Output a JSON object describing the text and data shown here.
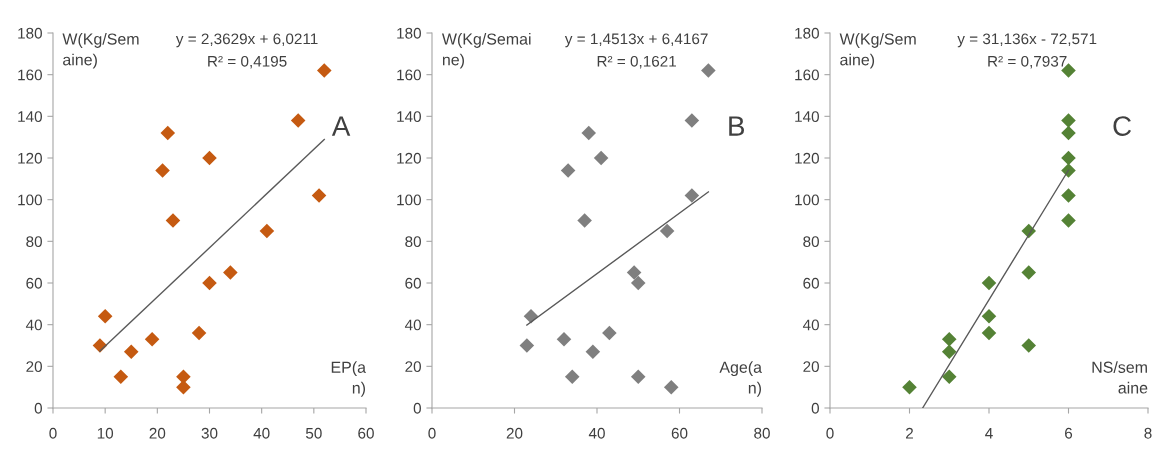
{
  "chart_data": [
    {
      "type": "scatter",
      "ylabel": "W(Kg/Sem\naine)",
      "xlabel": "EP(a\nn)",
      "annotations": [
        "y = 2,3629x + 6,0211",
        "R² = 0,4195",
        "A"
      ],
      "xlim": [
        0,
        60
      ],
      "xticks": [
        0,
        10,
        20,
        30,
        40,
        50,
        60
      ],
      "ylim": [
        0,
        180
      ],
      "yticks": [
        0,
        20,
        40,
        60,
        80,
        100,
        120,
        140,
        160,
        180
      ],
      "grid": false,
      "legend": false,
      "marker": "diamond",
      "series": [
        {
          "color": "#c55a11",
          "x": [
            9,
            10,
            13,
            15,
            19,
            21,
            22,
            23,
            25,
            25,
            28,
            30,
            30,
            34,
            41,
            47,
            51,
            52
          ],
          "values": [
            30,
            44,
            15,
            27,
            33,
            114,
            132,
            90,
            15,
            10,
            36,
            120,
            60,
            65,
            85,
            138,
            102,
            162
          ]
        },
        {
          "type": "line",
          "color": "#595959",
          "marker": "none",
          "line_style": "solid",
          "x": [
            9,
            52
          ],
          "values": [
            27.3,
            128.9
          ]
        }
      ]
    },
    {
      "type": "scatter",
      "ylabel": "W(Kg/Semai\nne)",
      "xlabel": "Age(a\nn)",
      "annotations": [
        "y = 1,4513x + 6,4167",
        "R² = 0,1621",
        "B"
      ],
      "xlim": [
        0,
        80
      ],
      "xticks": [
        0,
        20,
        40,
        60,
        80
      ],
      "ylim": [
        0,
        180
      ],
      "yticks": [
        0,
        20,
        40,
        60,
        80,
        100,
        120,
        140,
        160,
        180
      ],
      "grid": false,
      "legend": false,
      "marker": "diamond",
      "series": [
        {
          "color": "#7f7f7f",
          "x": [
            23,
            24,
            32,
            33,
            34,
            37,
            38,
            39,
            41,
            43,
            49,
            50,
            50,
            57,
            58,
            63,
            63,
            67
          ],
          "values": [
            30,
            44,
            33,
            114,
            15,
            90,
            132,
            27,
            120,
            36,
            65,
            60,
            15,
            85,
            10,
            138,
            102,
            162
          ]
        },
        {
          "type": "line",
          "color": "#595959",
          "marker": "none",
          "line_style": "solid",
          "x": [
            23,
            67
          ],
          "values": [
            39.8,
            103.7
          ]
        }
      ]
    },
    {
      "type": "scatter",
      "ylabel": "W(Kg/Sem\naine)",
      "xlabel": "NS/sem\naine",
      "annotations": [
        "y = 31,136x - 72,571",
        "R² = 0,7937",
        "C"
      ],
      "xlim": [
        0,
        8
      ],
      "xticks": [
        0,
        2,
        4,
        6,
        8
      ],
      "ylim": [
        0,
        180
      ],
      "yticks": [
        0,
        20,
        40,
        60,
        80,
        100,
        120,
        140,
        160,
        180
      ],
      "grid": false,
      "legend": false,
      "marker": "diamond",
      "series": [
        {
          "color": "#548235",
          "x": [
            2,
            3,
            3,
            3,
            4,
            4,
            4,
            5,
            5,
            5,
            6,
            6,
            6,
            6,
            6,
            6,
            6
          ],
          "values": [
            10,
            33,
            27,
            15,
            60,
            44,
            36,
            85,
            65,
            30,
            162,
            138,
            132,
            120,
            114,
            102,
            90
          ]
        },
        {
          "type": "line",
          "color": "#595959",
          "marker": "none",
          "line_style": "solid",
          "x": [
            2.33,
            6
          ],
          "values": [
            0,
            114.2
          ]
        }
      ]
    }
  ]
}
